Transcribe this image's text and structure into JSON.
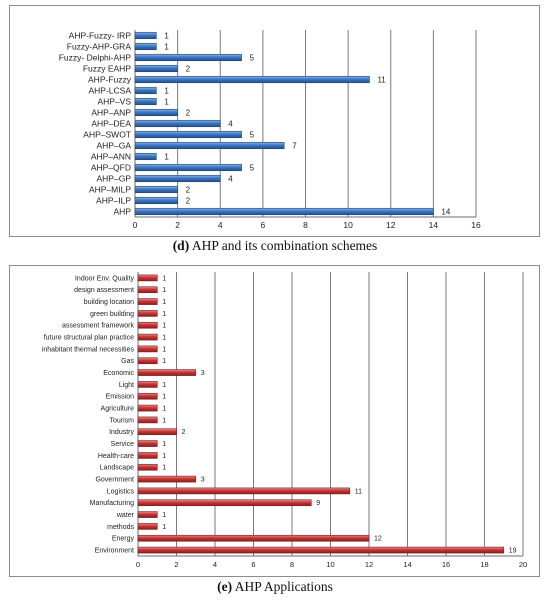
{
  "chart_data": [
    {
      "type": "bar",
      "orientation": "horizontal",
      "caption_letter": "(d)",
      "caption_text": "AHP and its combination schemes",
      "categories": [
        "AHP-Fuzzy- IRP",
        "Fuzzy-AHP-GRA",
        "Fuzzy- Delphi-AHP",
        "Fuzzy EAHP",
        "AHP-Fuzzy",
        "AHP-LCSA",
        "AHP–VS",
        "AHP–ANP",
        "AHP–DEA",
        "AHP–SWOT",
        "AHP–GA",
        "AHP–ANN",
        "AHP–QFD",
        "AHP–GP",
        "AHP–MILP",
        "AHP–ILP",
        "AHP"
      ],
      "values": [
        1,
        1,
        5,
        2,
        11,
        1,
        1,
        2,
        4,
        5,
        7,
        1,
        5,
        4,
        2,
        2,
        14
      ],
      "xlim": [
        0,
        16
      ],
      "xticks": [
        0,
        2,
        4,
        6,
        8,
        10,
        12,
        14,
        16
      ],
      "grid": true,
      "bar_color": "#3a78c8"
    },
    {
      "type": "bar",
      "orientation": "horizontal",
      "caption_letter": "(e)",
      "caption_text": "AHP Applications",
      "categories": [
        "Indoor Env. Quality",
        "design assessment",
        "building location",
        "green building",
        "assessment framework",
        "future structural plan practice",
        "inhabitant thermal  necessities",
        "Gas",
        "Economic",
        "Light",
        "Emission",
        "Agriculture",
        "Tourism",
        "Industry",
        "Service",
        "Health-care",
        "Landscape",
        "Government",
        "Logistics",
        "Manufacturing",
        "water",
        "methods",
        "Energy",
        "Environment"
      ],
      "values": [
        1,
        1,
        1,
        1,
        1,
        1,
        1,
        1,
        3,
        1,
        1,
        1,
        1,
        2,
        1,
        1,
        1,
        3,
        11,
        9,
        1,
        1,
        12,
        19
      ],
      "xlim": [
        0,
        20
      ],
      "xticks": [
        0,
        2,
        4,
        6,
        8,
        10,
        12,
        14,
        16,
        18,
        20
      ],
      "grid": true,
      "bar_color": "#cc3333"
    }
  ]
}
